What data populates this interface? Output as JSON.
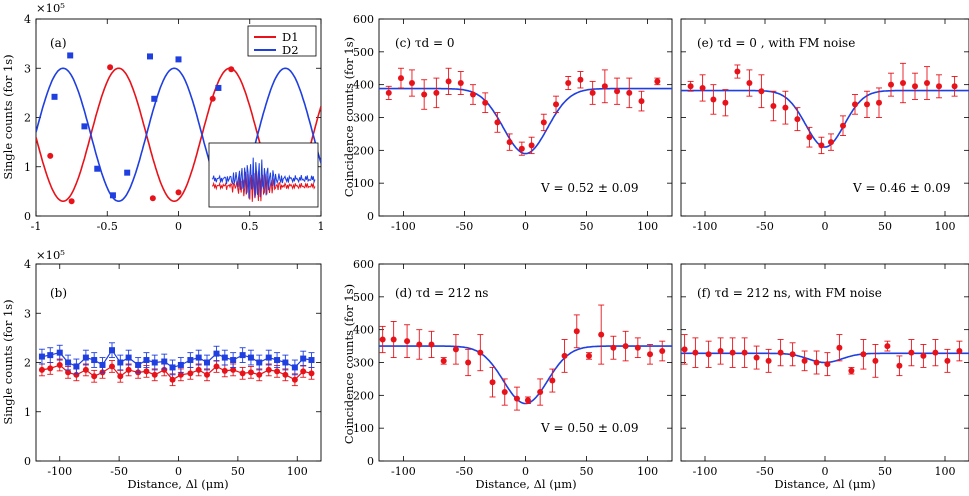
{
  "colors": {
    "red": "#e8131a",
    "blue": "#1f3fe0",
    "axis": "#000000"
  },
  "x_axis_label": "Distance, Δl (μm)",
  "chart_data": [
    {
      "id": "a",
      "type": "line",
      "label": "(a)",
      "exponent": "×10⁵",
      "ylabel": "Single counts (for 1s)",
      "xlim": [
        -1,
        1
      ],
      "ylim": [
        0,
        4
      ],
      "xticks": [
        -1,
        -0.5,
        0,
        0.5,
        1
      ],
      "xticklabels": [
        "-1",
        "-0.5",
        "0",
        "0.5",
        "1"
      ],
      "yticks": [
        0,
        1,
        2,
        3,
        4
      ],
      "yticklabels": [
        "0",
        "1",
        "2",
        "3",
        "4"
      ],
      "legend": [
        "D1",
        "D2"
      ],
      "fit": {
        "mean": 1.65,
        "amp": 1.35,
        "period": 0.78,
        "d1_peak": 0.36
      },
      "series": [
        {
          "name": "D1",
          "color": "red",
          "marker": "circle",
          "x": [
            -0.9,
            -0.75,
            -0.48,
            -0.18,
            0.0,
            0.24,
            0.37
          ],
          "y": [
            1.22,
            0.3,
            3.02,
            0.36,
            0.48,
            2.38,
            2.98
          ]
        },
        {
          "name": "D2",
          "color": "blue",
          "marker": "square",
          "x": [
            -0.87,
            -0.76,
            -0.66,
            -0.57,
            -0.46,
            -0.36,
            -0.2,
            -0.17,
            0.0,
            0.28
          ],
          "y": [
            2.42,
            3.26,
            1.82,
            0.96,
            0.42,
            0.88,
            3.24,
            2.38,
            3.18,
            2.6
          ]
        }
      ]
    },
    {
      "id": "b",
      "type": "line",
      "label": "(b)",
      "exponent": "×10⁵",
      "ylabel": "Single counts (for 1s)",
      "xlim": [
        -120,
        120
      ],
      "ylim": [
        0,
        4
      ],
      "xticks": [
        -100,
        -50,
        0,
        50,
        100
      ],
      "xticklabels": [
        "-100",
        "-50",
        "0",
        "50",
        "100"
      ],
      "yticks": [
        0,
        1,
        2,
        3,
        4
      ],
      "yticklabels": [
        "0",
        "1",
        "2",
        "3",
        "4"
      ],
      "series": [
        {
          "name": "D1",
          "color": "red",
          "marker": "circle",
          "x": [
            -115,
            -108,
            -100,
            -93,
            -86,
            -78,
            -71,
            -64,
            -56,
            -49,
            -42,
            -34,
            -27,
            -20,
            -12,
            -5,
            2,
            10,
            17,
            24,
            32,
            39,
            46,
            54,
            61,
            68,
            76,
            83,
            90,
            98,
            105,
            112
          ],
          "y": [
            1.85,
            1.88,
            1.95,
            1.8,
            1.75,
            1.85,
            1.72,
            1.8,
            1.92,
            1.72,
            1.85,
            1.8,
            1.82,
            1.75,
            1.85,
            1.65,
            1.75,
            1.78,
            1.85,
            1.75,
            1.92,
            1.83,
            1.85,
            1.78,
            1.8,
            1.75,
            1.85,
            1.82,
            1.75,
            1.65,
            1.82,
            1.78
          ],
          "err": 0.12
        },
        {
          "name": "D2",
          "color": "blue",
          "marker": "square",
          "x": [
            -115,
            -108,
            -100,
            -93,
            -86,
            -78,
            -71,
            -64,
            -56,
            -49,
            -42,
            -34,
            -27,
            -20,
            -12,
            -5,
            2,
            10,
            17,
            24,
            32,
            39,
            46,
            54,
            61,
            68,
            76,
            83,
            90,
            98,
            105,
            112
          ],
          "y": [
            2.12,
            2.15,
            2.2,
            2.0,
            1.92,
            2.1,
            2.05,
            1.95,
            2.25,
            2.0,
            2.1,
            1.95,
            2.05,
            2.0,
            2.02,
            1.9,
            1.95,
            2.05,
            2.1,
            2.0,
            2.18,
            2.1,
            2.05,
            2.15,
            2.1,
            2.0,
            2.1,
            2.05,
            2.0,
            1.9,
            2.08,
            2.05
          ],
          "err": 0.15
        }
      ]
    },
    {
      "id": "c",
      "type": "scatter",
      "label": "(c) τd = 0",
      "annotation": "V = 0.52 ± 0.09",
      "ylabel": "Coincidence counts (for 1s)",
      "xlim": [
        -120,
        120
      ],
      "ylim": [
        0,
        600
      ],
      "xticks": [
        -100,
        -50,
        0,
        50,
        100
      ],
      "xticklabels": [
        "-100",
        "-50",
        "0",
        "50",
        "100"
      ],
      "yticks": [
        0,
        100,
        200,
        300,
        400,
        500,
        600
      ],
      "yticklabels": [
        "0",
        "100",
        "200",
        "300",
        "400",
        "500",
        "600"
      ],
      "fit": {
        "base": 388,
        "depth": 198,
        "width": 18
      },
      "series": [
        {
          "name": "data",
          "color": "red",
          "x": [
            -112,
            -102,
            -93,
            -83,
            -73,
            -63,
            -53,
            -43,
            -33,
            -23,
            -13,
            -3,
            5,
            15,
            25,
            35,
            45,
            55,
            65,
            75,
            85,
            95,
            108
          ],
          "y": [
            375,
            420,
            405,
            370,
            375,
            410,
            405,
            370,
            345,
            285,
            225,
            205,
            215,
            285,
            340,
            405,
            415,
            375,
            395,
            380,
            375,
            350,
            410
          ],
          "err": [
            20,
            30,
            40,
            45,
            45,
            40,
            35,
            30,
            30,
            30,
            25,
            20,
            25,
            25,
            25,
            20,
            25,
            35,
            50,
            40,
            45,
            30,
            10
          ]
        }
      ]
    },
    {
      "id": "e",
      "type": "scatter",
      "label": "(e) τd = 0 , with FM noise",
      "annotation": "V = 0.46 ± 0.09",
      "xlim": [
        -120,
        120
      ],
      "ylim": [
        0,
        600
      ],
      "xticks": [
        -100,
        -50,
        0,
        50,
        100
      ],
      "xticklabels": [
        "-100",
        "-50",
        "0",
        "50",
        "100"
      ],
      "yticks": [
        0,
        100,
        200,
        300,
        400,
        500,
        600
      ],
      "yticklabels": [],
      "fit": {
        "base": 382,
        "depth": 172,
        "width": 16
      },
      "series": [
        {
          "name": "data",
          "color": "red",
          "x": [
            -112,
            -102,
            -93,
            -83,
            -73,
            -63,
            -53,
            -43,
            -33,
            -23,
            -13,
            -3,
            5,
            15,
            25,
            35,
            45,
            55,
            65,
            75,
            85,
            95,
            108
          ],
          "y": [
            395,
            390,
            355,
            345,
            440,
            405,
            380,
            335,
            330,
            295,
            240,
            215,
            225,
            275,
            340,
            340,
            345,
            400,
            405,
            395,
            405,
            395,
            395
          ],
          "err": [
            15,
            40,
            45,
            40,
            20,
            40,
            50,
            45,
            50,
            35,
            30,
            25,
            25,
            30,
            30,
            40,
            45,
            35,
            60,
            40,
            50,
            35,
            30
          ]
        }
      ]
    },
    {
      "id": "d",
      "type": "scatter",
      "label": "(d) τd = 212 ns",
      "annotation": "V = 0.50 ± 0.09",
      "ylabel": "Coincidence counts (for 1s)",
      "xlim": [
        -120,
        120
      ],
      "ylim": [
        0,
        600
      ],
      "xticks": [
        -100,
        -50,
        0,
        50,
        100
      ],
      "xticklabels": [
        "-100",
        "-50",
        "0",
        "50",
        "100"
      ],
      "yticks": [
        0,
        100,
        200,
        300,
        400,
        500,
        600
      ],
      "yticklabels": [
        "0",
        "100",
        "200",
        "300",
        "400",
        "500",
        "600"
      ],
      "fit": {
        "base": 350,
        "depth": 175,
        "width": 18
      },
      "series": [
        {
          "name": "data",
          "color": "red",
          "x": [
            -117,
            -108,
            -97,
            -87,
            -77,
            -67,
            -57,
            -47,
            -37,
            -27,
            -17,
            -7,
            2,
            12,
            22,
            32,
            42,
            52,
            62,
            72,
            82,
            92,
            102,
            112
          ],
          "y": [
            370,
            370,
            365,
            355,
            355,
            305,
            340,
            300,
            330,
            240,
            210,
            190,
            185,
            210,
            245,
            320,
            395,
            320,
            385,
            345,
            350,
            345,
            325,
            335
          ],
          "err": [
            40,
            55,
            50,
            45,
            40,
            10,
            45,
            40,
            55,
            45,
            40,
            35,
            10,
            40,
            35,
            50,
            50,
            10,
            90,
            35,
            45,
            30,
            30,
            30
          ]
        }
      ]
    },
    {
      "id": "f",
      "type": "scatter",
      "label": "(f) τd = 212 ns, with FM noise",
      "xlim": [
        -120,
        120
      ],
      "ylim": [
        0,
        600
      ],
      "xticks": [
        -100,
        -50,
        0,
        50,
        100
      ],
      "xticklabels": [
        "-100",
        "-50",
        "0",
        "50",
        "100"
      ],
      "yticks": [
        0,
        100,
        200,
        300,
        400,
        500,
        600
      ],
      "yticklabels": [],
      "fit": {
        "base": 328,
        "depth": 28,
        "width": 14
      },
      "series": [
        {
          "name": "data",
          "color": "red",
          "x": [
            -117,
            -108,
            -97,
            -87,
            -77,
            -67,
            -57,
            -47,
            -37,
            -27,
            -17,
            -7,
            2,
            12,
            22,
            32,
            42,
            52,
            62,
            72,
            82,
            92,
            102,
            112
          ],
          "y": [
            340,
            330,
            325,
            335,
            330,
            330,
            315,
            305,
            330,
            325,
            305,
            300,
            295,
            345,
            275,
            325,
            305,
            350,
            290,
            330,
            320,
            330,
            305,
            335
          ],
          "err": [
            45,
            45,
            40,
            40,
            45,
            45,
            35,
            35,
            40,
            35,
            30,
            35,
            35,
            40,
            10,
            45,
            50,
            15,
            30,
            40,
            35,
            40,
            35,
            30
          ]
        }
      ]
    }
  ]
}
